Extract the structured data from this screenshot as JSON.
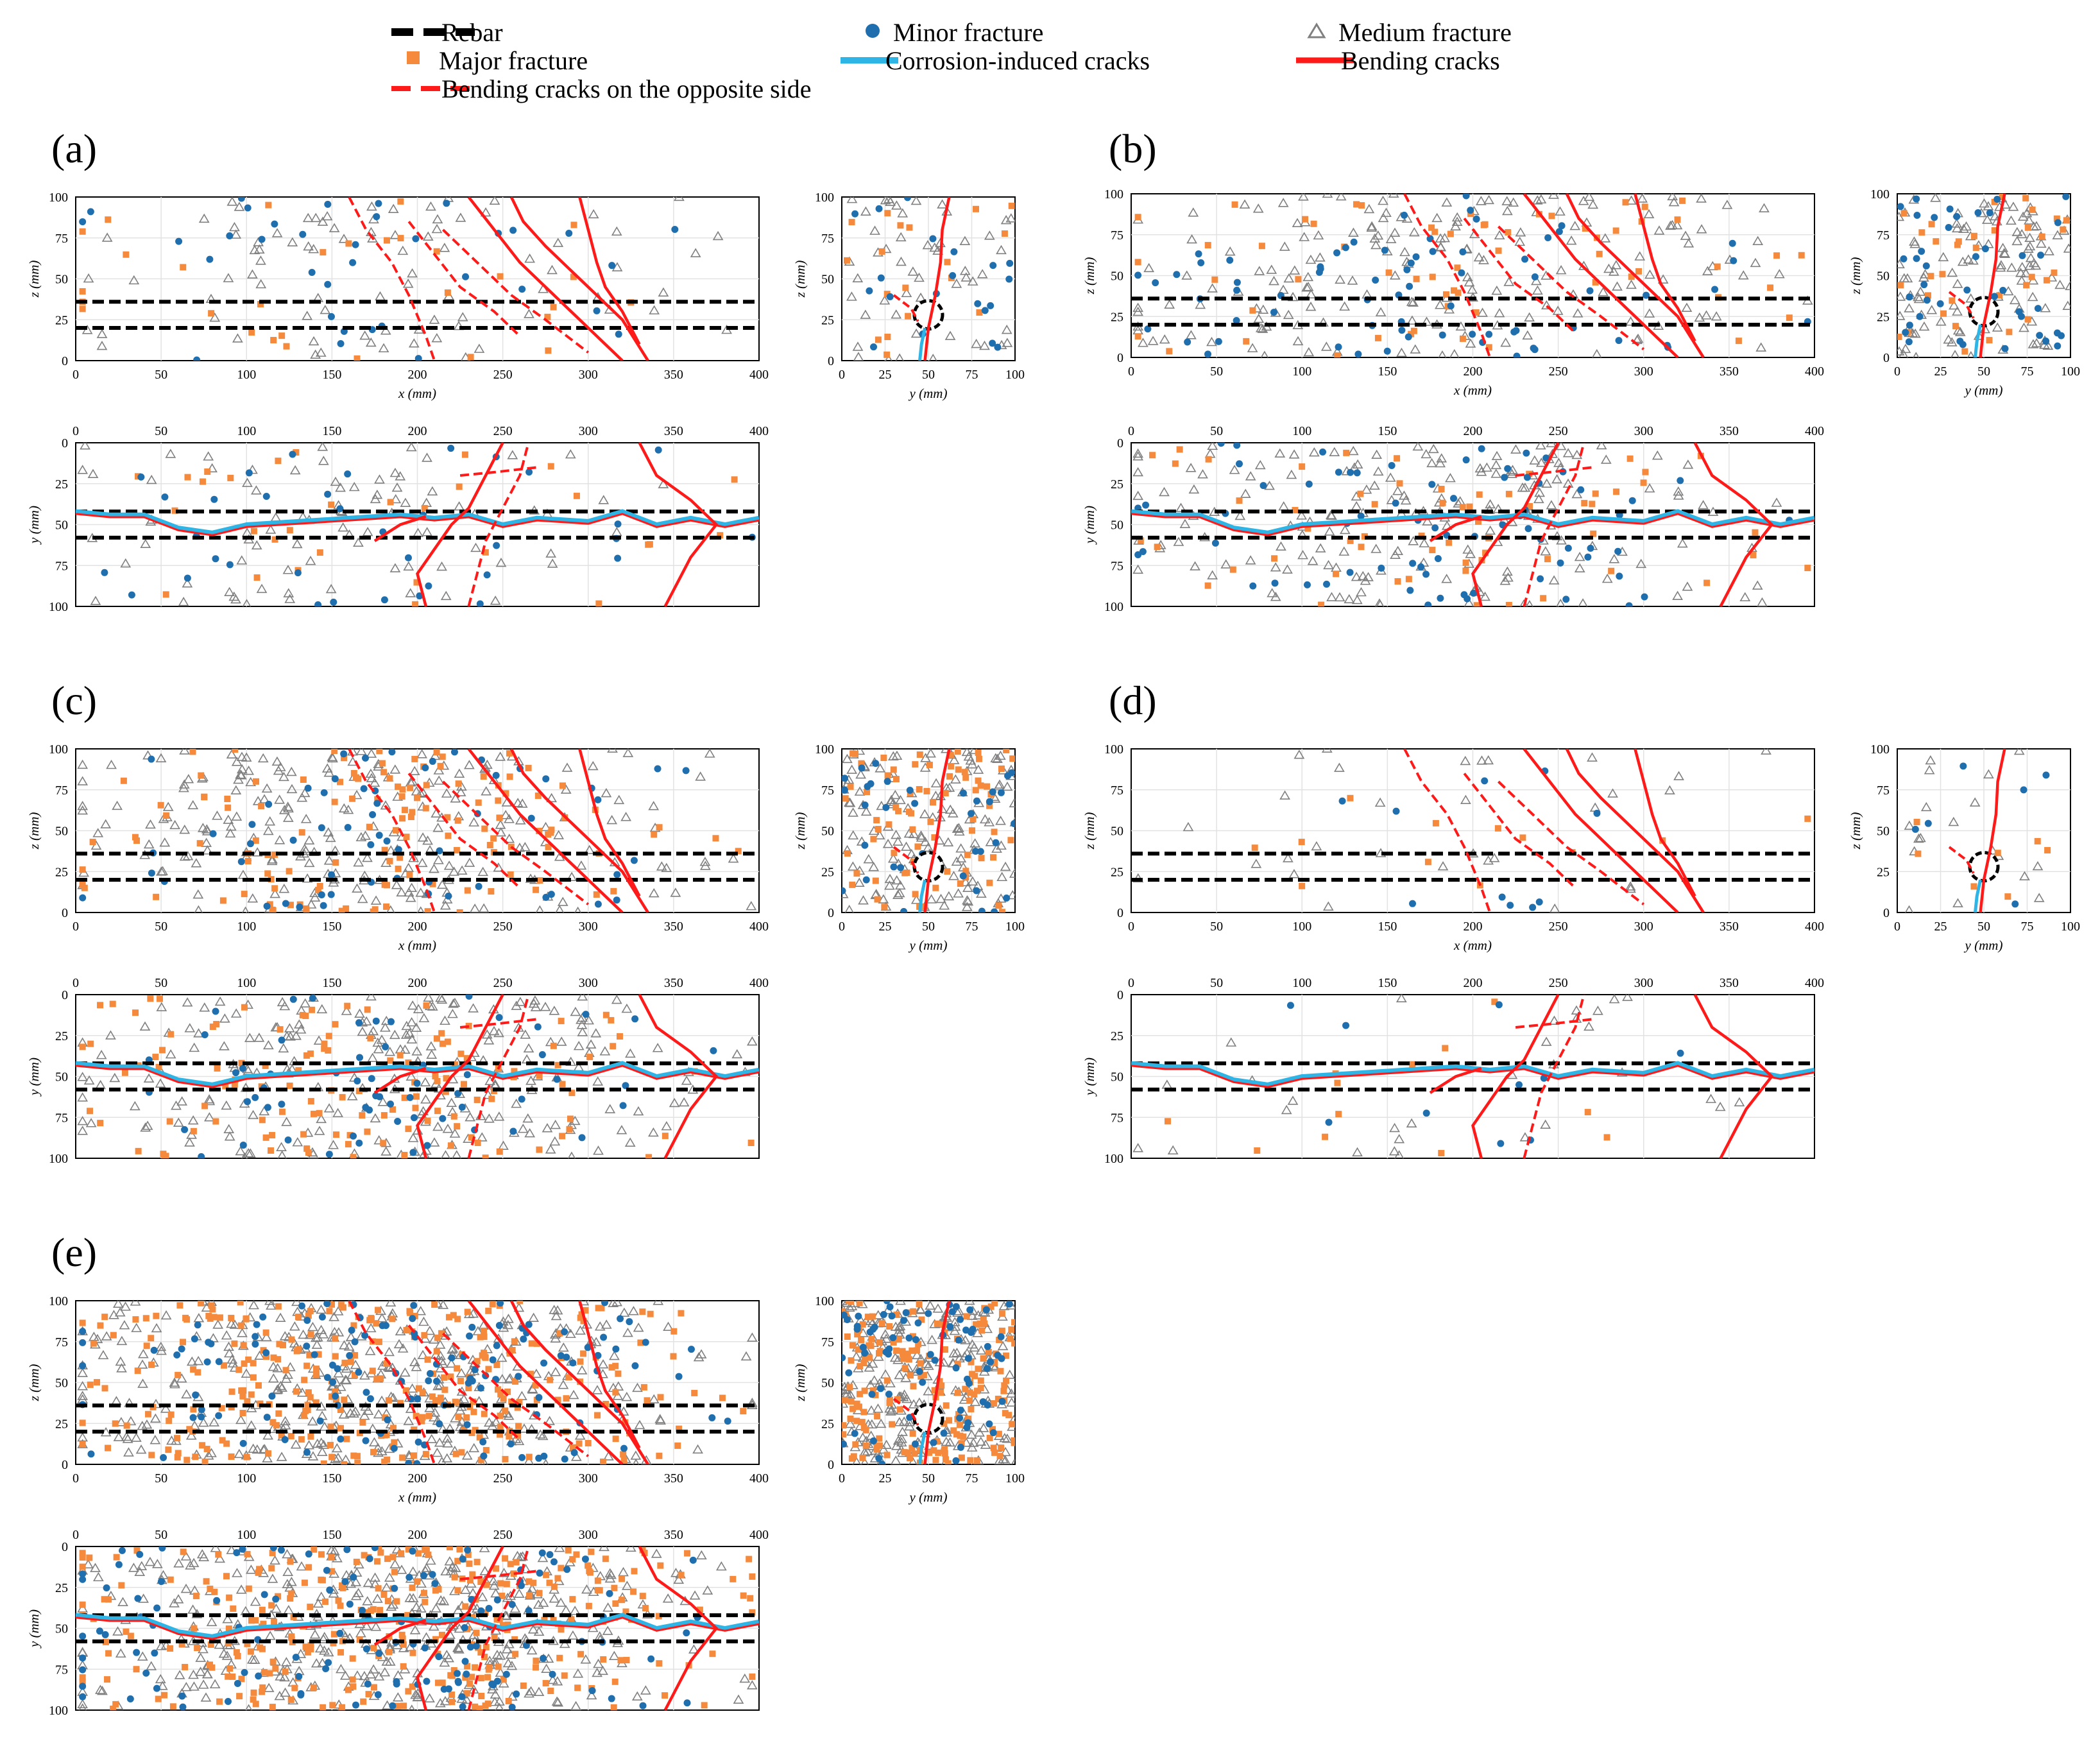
{
  "legend": {
    "items": [
      {
        "key": "rebar",
        "label": "Rebar"
      },
      {
        "key": "minor",
        "label": "Minor fracture"
      },
      {
        "key": "medium",
        "label": "Medium fracture"
      },
      {
        "key": "major",
        "label": "Major fracture"
      },
      {
        "key": "corrosion",
        "label": "Corrosion-induced cracks"
      },
      {
        "key": "bending",
        "label": "Bending cracks"
      },
      {
        "key": "opposite",
        "label": "Bending cracks on the opposite side"
      }
    ]
  },
  "colors": {
    "rebar": "#000000",
    "minor": "#1f6fae",
    "medium": "#808080",
    "major": "#f58a3c",
    "corrosion": "#2fb4e6",
    "bending": "#ff1a1a",
    "opposite": "#ff1a1a"
  },
  "panels": [
    {
      "label": "(a)",
      "density": {
        "minor": 35,
        "medium": 85,
        "major": 30
      },
      "sideView": true
    },
    {
      "label": "(b)",
      "density": {
        "minor": 70,
        "medium": 200,
        "major": 60
      },
      "sideView": true
    },
    {
      "label": "(c)",
      "density": {
        "minor": 60,
        "medium": 260,
        "major": 130
      },
      "sideView": true
    },
    {
      "label": "(d)",
      "density": {
        "minor": 10,
        "medium": 30,
        "major": 12
      },
      "sideView": true
    },
    {
      "label": "(e)",
      "density": {
        "minor": 130,
        "medium": 420,
        "major": 320
      },
      "sideView": true
    }
  ],
  "axes": {
    "xz": {
      "xlabel": "x (mm)",
      "ylabel": "z (mm)",
      "xticks": [
        "0",
        "50",
        "100",
        "150",
        "200",
        "250",
        "300",
        "350",
        "400"
      ],
      "yticks": [
        "0",
        "25",
        "50",
        "75",
        "100"
      ]
    },
    "yz": {
      "xlabel": "y (mm)",
      "ylabel": "z (mm)",
      "xticks": [
        "0",
        "25",
        "50",
        "75",
        "100"
      ],
      "yticks": [
        "0",
        "25",
        "50",
        "75",
        "100"
      ]
    },
    "xy": {
      "xlabel": "",
      "ylabel": "y (mm)",
      "xticks": [
        "0",
        "50",
        "100",
        "150",
        "200",
        "250",
        "300",
        "350",
        "400"
      ],
      "yticks": [
        "0",
        "25",
        "50",
        "75",
        "100"
      ]
    }
  },
  "chart_data": {
    "type": "scatter",
    "x_range": [
      0,
      400
    ],
    "y_range": [
      0,
      100
    ],
    "z_range": [
      0,
      100
    ],
    "rebar_lines_z": [
      20,
      36
    ],
    "rebar_lines_y": [
      42,
      58
    ],
    "series": [
      {
        "name": "Minor fracture",
        "marker": "circle"
      },
      {
        "name": "Medium fracture",
        "marker": "triangle"
      },
      {
        "name": "Major fracture",
        "marker": "square"
      },
      {
        "name": "Corrosion-induced cracks",
        "marker": "line"
      },
      {
        "name": "Bending cracks",
        "marker": "line"
      },
      {
        "name": "Bending cracks on the opposite side",
        "marker": "dashed-line"
      }
    ],
    "bending_cracks_xz": [
      [
        [
          255,
          100
        ],
        [
          262,
          85
        ],
        [
          275,
          70
        ],
        [
          290,
          55
        ],
        [
          305,
          40
        ],
        [
          320,
          25
        ],
        [
          335,
          0
        ]
      ],
      [
        [
          295,
          100
        ],
        [
          300,
          80
        ],
        [
          305,
          60
        ],
        [
          310,
          45
        ],
        [
          320,
          30
        ],
        [
          330,
          10
        ]
      ],
      [
        [
          230,
          100
        ],
        [
          245,
          80
        ],
        [
          260,
          60
        ],
        [
          280,
          40
        ],
        [
          300,
          20
        ],
        [
          320,
          0
        ]
      ]
    ],
    "opposite_cracks_xz": [
      [
        [
          160,
          100
        ],
        [
          170,
          80
        ],
        [
          185,
          60
        ],
        [
          195,
          40
        ],
        [
          205,
          15
        ],
        [
          210,
          0
        ]
      ],
      [
        [
          195,
          85
        ],
        [
          210,
          65
        ],
        [
          225,
          45
        ],
        [
          245,
          30
        ],
        [
          260,
          15
        ]
      ],
      [
        [
          215,
          80
        ],
        [
          235,
          60
        ],
        [
          255,
          40
        ],
        [
          275,
          25
        ],
        [
          300,
          5
        ]
      ]
    ]
  }
}
